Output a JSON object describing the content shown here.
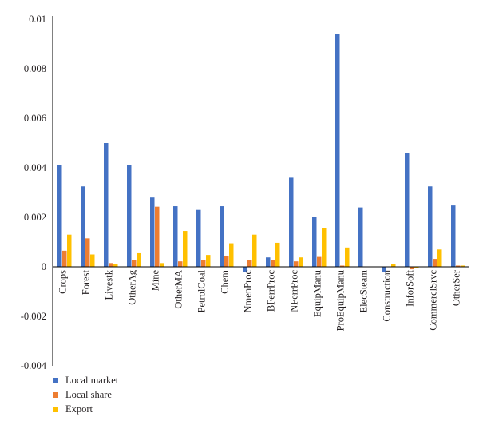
{
  "chart_data": {
    "type": "bar",
    "title": "",
    "xlabel": "",
    "ylabel": "",
    "ylim": [
      -0.004,
      0.01
    ],
    "yticks": [
      -0.004,
      -0.002,
      0,
      0.002,
      0.004,
      0.006,
      0.008,
      0.01
    ],
    "ytick_labels": [
      "-0.004",
      "-0.002",
      "0",
      "0.002",
      "0.004",
      "0.006",
      "0.008",
      "0.01"
    ],
    "grid": false,
    "legend_position": "bottom-left",
    "categories": [
      "Crops",
      "Forest",
      "Livestk",
      "OtherAg",
      "Mine",
      "OtherMA",
      "PetrolCoal",
      "Chem",
      "NmenProc",
      "BFerrProc",
      "NFerrProc",
      "EquipManu",
      "ProEquipManu",
      "ElecSteam",
      "Construction",
      "InforSoft",
      "CommerclSrvc",
      "OtherSer"
    ],
    "series": [
      {
        "name": "Local market",
        "color": "#4472c4",
        "values": [
          0.0041,
          0.00325,
          0.005,
          0.0041,
          0.0028,
          0.00245,
          0.0023,
          0.00245,
          -0.0002,
          0.00038,
          0.0036,
          0.002,
          0.0094,
          0.0024,
          -0.0002,
          0.0046,
          0.00325,
          0.00248
        ]
      },
      {
        "name": "Local share",
        "color": "#ed7d31",
        "values": [
          0.00065,
          0.00115,
          0.00015,
          0.00028,
          0.00243,
          0.00022,
          0.00028,
          0.00045,
          0.00028,
          0.00028,
          0.00022,
          0.0004,
          5e-05,
          0.0,
          0.0,
          -0.0001,
          0.00032,
          5e-05
        ]
      },
      {
        "name": "Export",
        "color": "#ffc000",
        "values": [
          0.0013,
          0.0005,
          0.00012,
          0.00055,
          0.00015,
          0.00145,
          0.00048,
          0.00095,
          0.0013,
          0.00097,
          0.00038,
          0.00155,
          0.00078,
          0.0,
          0.0001,
          -5e-05,
          0.0007,
          5e-05
        ]
      }
    ]
  }
}
